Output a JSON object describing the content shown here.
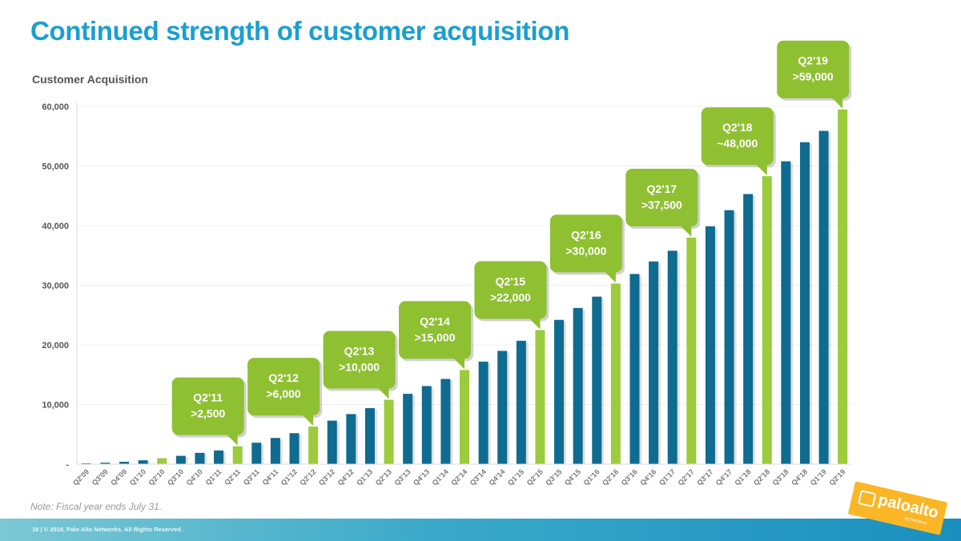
{
  "slide": {
    "title": "Continued strength of customer acquisition",
    "note": "Note: Fiscal year ends July 31.",
    "footer": "18  |  © 2018, Palo Alto Networks. All Rights Reserved.",
    "logo": {
      "text": "paloalto",
      "sub": "NETWORKS",
      "color": "#fbb625"
    }
  },
  "colors": {
    "title": "#1a9fd0",
    "bar_regular": "#0f6b8f",
    "bar_highlight": "#9ccb3b",
    "callout": "#8fc031"
  },
  "chart_data": {
    "type": "bar",
    "title": "Customer Acquisition",
    "xlabel": "",
    "ylabel": "",
    "ylim": [
      0,
      60000
    ],
    "yticks": [
      0,
      10000,
      20000,
      30000,
      40000,
      50000,
      60000
    ],
    "ytick_labels": [
      "-",
      "10,000",
      "20,000",
      "30,000",
      "40,000",
      "50,000",
      "60,000"
    ],
    "grid": true,
    "categories": [
      "Q2'09",
      "Q3'09",
      "Q4'09",
      "Q1'10",
      "Q2'10",
      "Q3'10",
      "Q4'10",
      "Q1'11",
      "Q2'11",
      "Q3'11",
      "Q4'11",
      "Q1'12",
      "Q2'12",
      "Q3'12",
      "Q4'12",
      "Q1'13",
      "Q2'13",
      "Q3'13",
      "Q4'13",
      "Q1'14",
      "Q2'14",
      "Q3'14",
      "Q4'14",
      "Q1'15",
      "Q2'15",
      "Q3'15",
      "Q4'15",
      "Q1'16",
      "Q2'16",
      "Q3'16",
      "Q4'16",
      "Q1'17",
      "Q2'17",
      "Q3'17",
      "Q4'17",
      "Q1'18",
      "Q2'18",
      "Q3'18",
      "Q4'18",
      "Q1'19",
      "Q2'19"
    ],
    "values": [
      150,
      250,
      400,
      650,
      1000,
      1400,
      1900,
      2300,
      3000,
      3600,
      4400,
      5200,
      6300,
      7300,
      8400,
      9400,
      10800,
      11800,
      13100,
      14300,
      15800,
      17200,
      19000,
      20700,
      22500,
      24200,
      26200,
      28100,
      30300,
      31900,
      34000,
      35800,
      38000,
      39900,
      42600,
      45300,
      48300,
      50800,
      54000,
      55900,
      59500
    ],
    "highlighted": [
      "Q2'10",
      "Q2'11",
      "Q2'12",
      "Q2'13",
      "Q2'14",
      "Q2'15",
      "Q2'16",
      "Q2'17",
      "Q2'18",
      "Q2'19"
    ],
    "annotations": [
      {
        "category": "Q2'11",
        "line1": "Q2'11",
        "line2": ">2,500"
      },
      {
        "category": "Q2'12",
        "line1": "Q2'12",
        "line2": ">6,000"
      },
      {
        "category": "Q2'13",
        "line1": "Q2'13",
        "line2": ">10,000"
      },
      {
        "category": "Q2'14",
        "line1": "Q2'14",
        "line2": ">15,000"
      },
      {
        "category": "Q2'15",
        "line1": "Q2'15",
        "line2": ">22,000"
      },
      {
        "category": "Q2'16",
        "line1": "Q2'16",
        "line2": ">30,000"
      },
      {
        "category": "Q2'17",
        "line1": "Q2'17",
        "line2": ">37,500"
      },
      {
        "category": "Q2'18",
        "line1": "Q2'18",
        "line2": "~48,000"
      },
      {
        "category": "Q2'19",
        "line1": "Q2'19",
        "line2": ">59,000"
      }
    ]
  }
}
